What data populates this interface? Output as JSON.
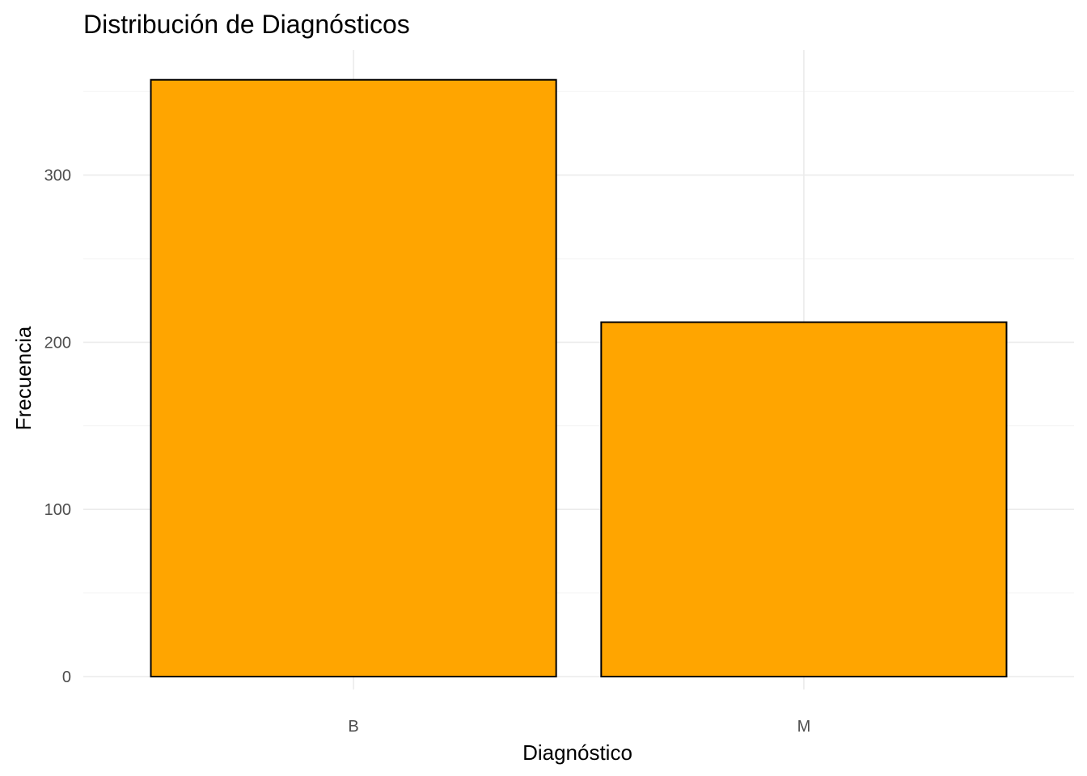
{
  "chart_data": {
    "type": "bar",
    "title": "Distribución de Diagnósticos",
    "xlabel": "Diagnóstico",
    "ylabel": "Frecuencia",
    "categories": [
      "B",
      "M"
    ],
    "values": [
      357,
      212
    ],
    "ylim": [
      0,
      375
    ],
    "yticks": [
      0,
      100,
      200,
      300
    ],
    "yticks_minor": [
      50,
      150,
      250,
      350
    ],
    "ytick_labels": [
      "0",
      "100",
      "200",
      "300"
    ],
    "grid": true,
    "legend": "none",
    "bar_fill": "#FFA500",
    "bar_outline": "#000000"
  }
}
